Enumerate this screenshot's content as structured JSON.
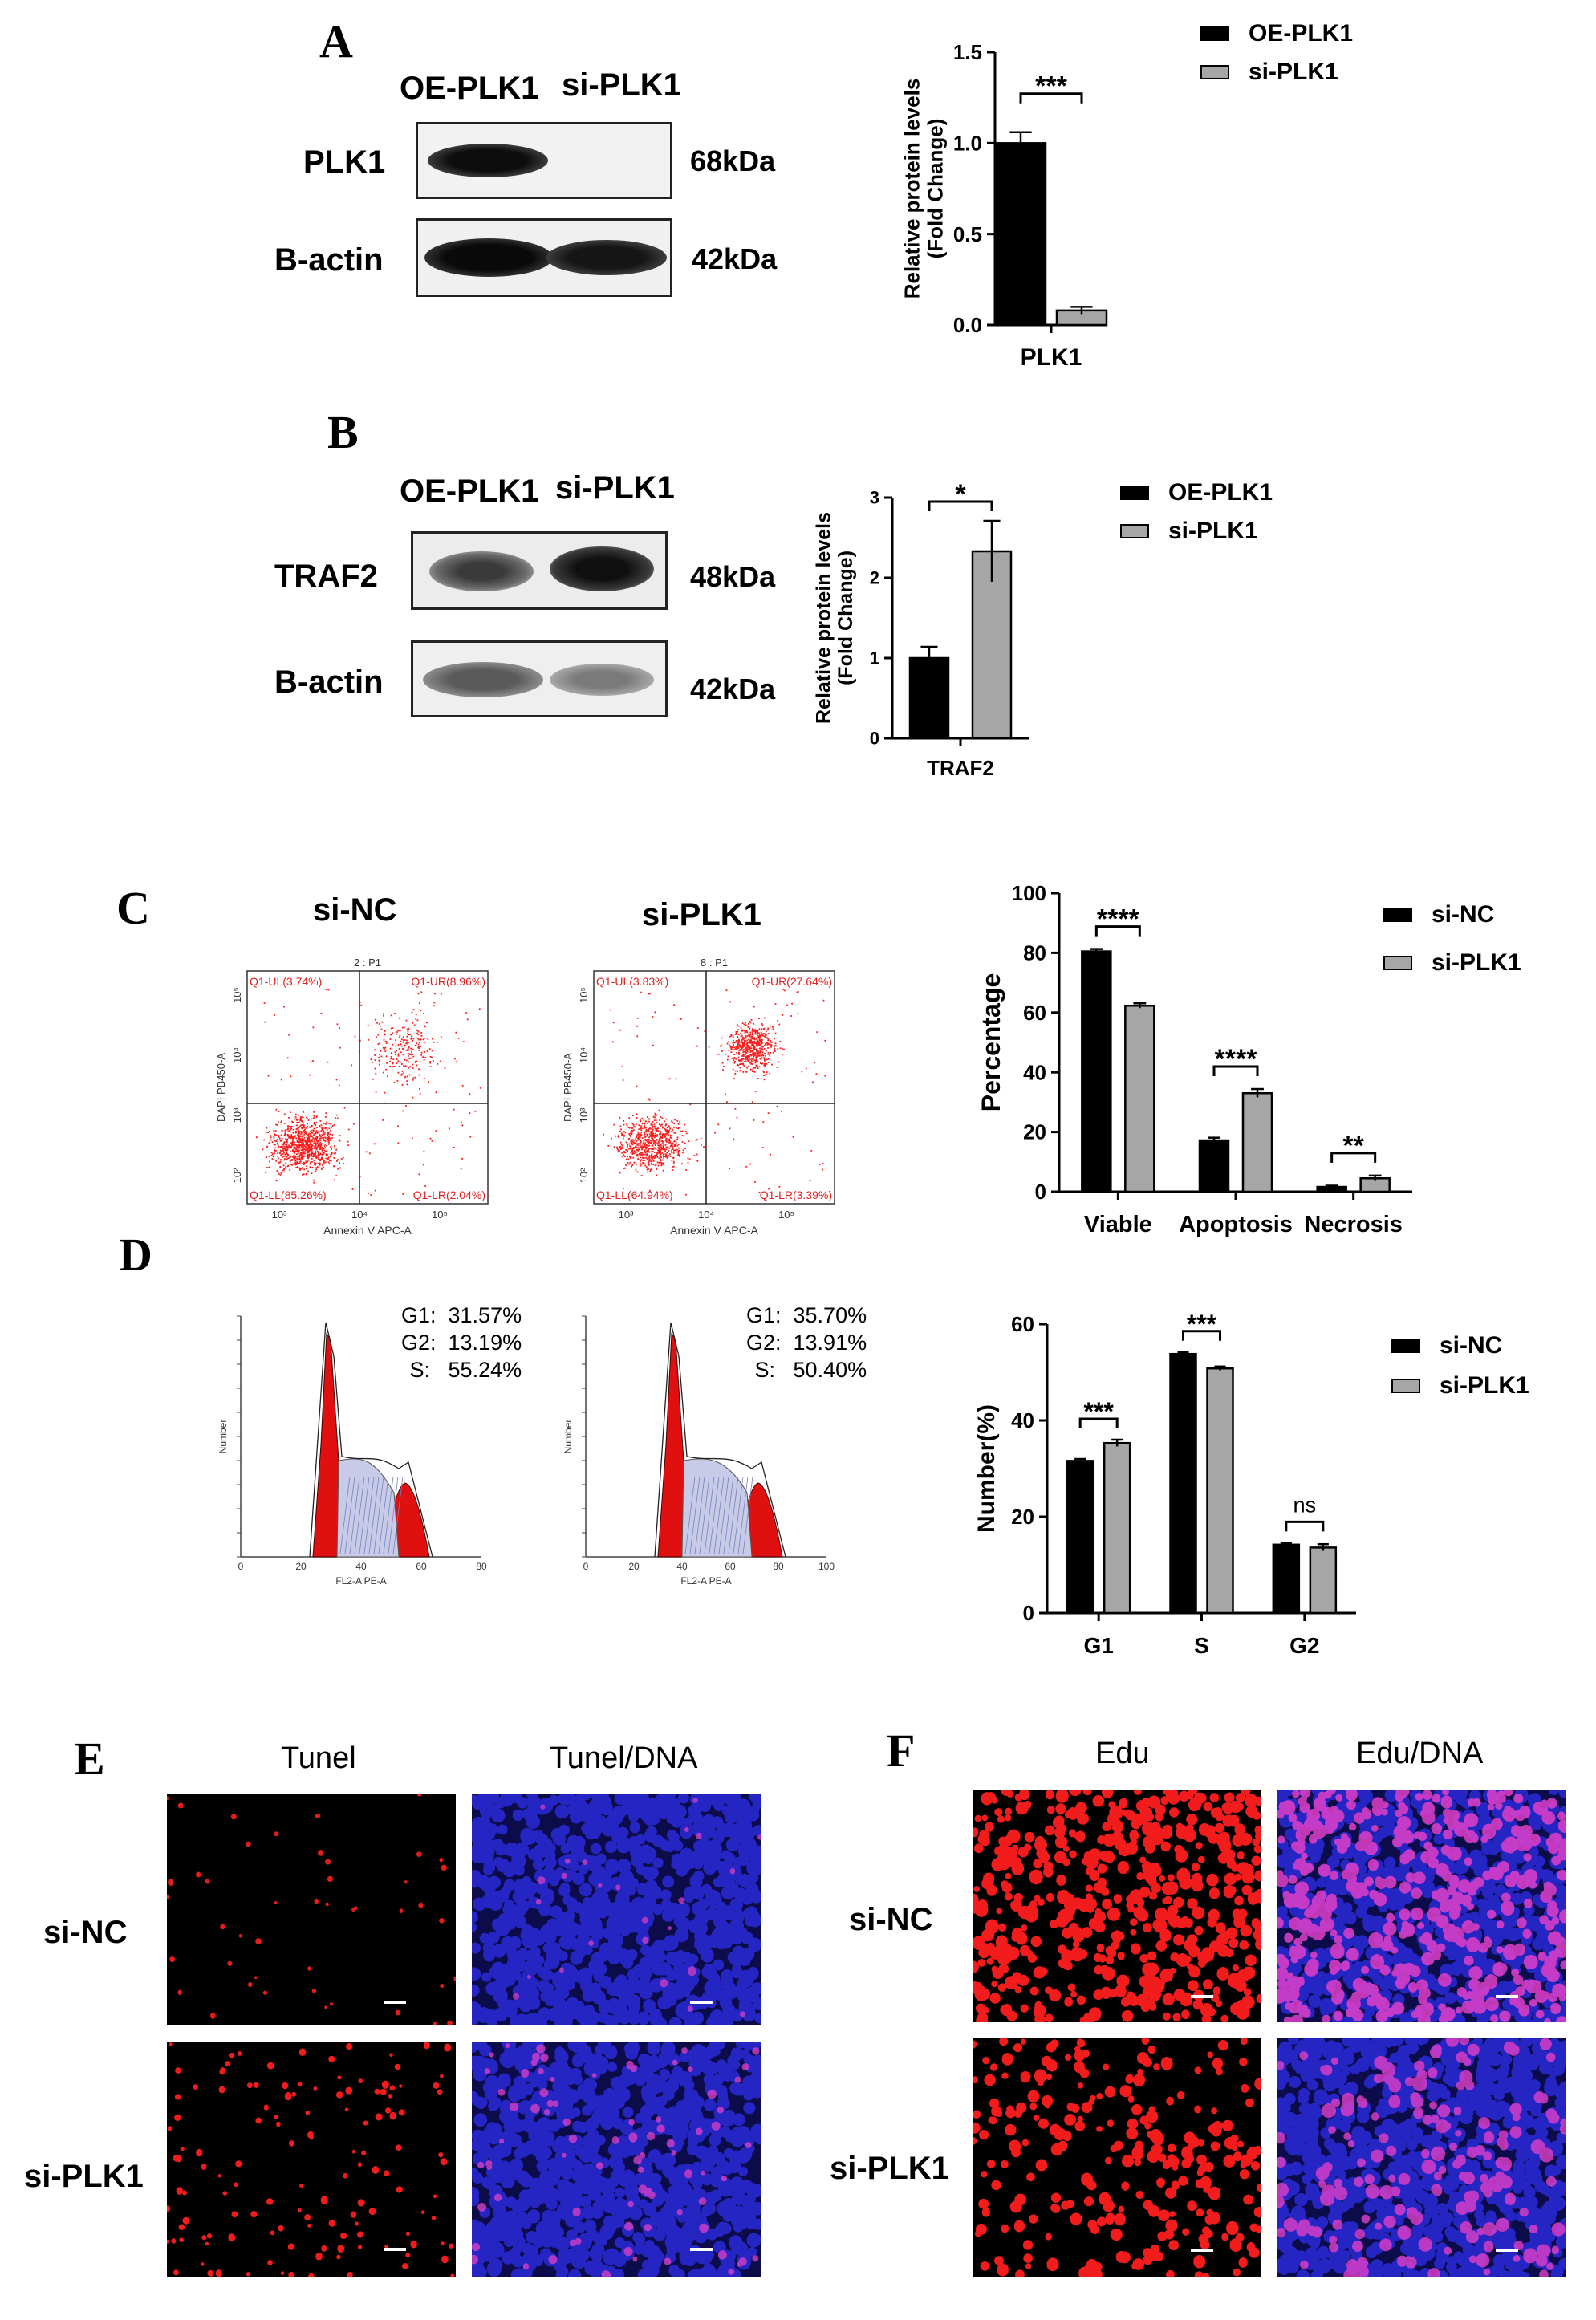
{
  "panels": {
    "A": {
      "label": "A",
      "lanes": [
        "OE-PLK1",
        "si-PLK1"
      ],
      "bands": [
        {
          "name": "PLK1",
          "kda": "68kDa"
        },
        {
          "name": "B-actin",
          "kda": "42kDa"
        }
      ]
    },
    "B": {
      "label": "B",
      "lanes": [
        "OE-PLK1",
        "si-PLK1"
      ],
      "bands": [
        {
          "name": "TRAF2",
          "kda": "48kDa"
        },
        {
          "name": "B-actin",
          "kda": "42kDa"
        }
      ]
    },
    "C": {
      "label": "C",
      "flow_titles": [
        "si-NC",
        "si-PLK1"
      ],
      "flow_plots": [
        {
          "sample": "2 : P1",
          "ul": "Q1-UL(3.74%)",
          "ur": "Q1-UR(8.96%)",
          "ll": "Q1-LL(85.26%)",
          "lr": "Q1-LR(2.04%)",
          "xlabel": "Annexin V APC-A",
          "ylabel": "DAPI PB450-A"
        },
        {
          "sample": "8 : P1",
          "ul": "Q1-UL(3.83%)",
          "ur": "Q1-UR(27.64%)",
          "ll": "Q1-LL(64.94%)",
          "lr": "Q1-LR(3.39%)",
          "xlabel": "Annexin V APC-A",
          "ylabel": "DAPI PB450-A"
        }
      ]
    },
    "D": {
      "label": "D",
      "cc_plots": [
        {
          "stats": "G1:  31.57%\nG2:  13.19%\nS:   55.24%",
          "xlabel": "FL2-A PE-A",
          "ylabel": "Number"
        },
        {
          "stats": "G1:  35.70%\nG2:  13.91%\nS:   50.40%",
          "xlabel": "FL2-A PE-A",
          "ylabel": "Number"
        }
      ]
    },
    "E": {
      "label": "E",
      "columns": [
        "Tunel",
        "Tunel/DNA"
      ],
      "rows": [
        "si-NC",
        "si-PLK1"
      ]
    },
    "F": {
      "label": "F",
      "columns": [
        "Edu",
        "Edu/DNA"
      ],
      "rows": [
        "si-NC",
        "si-PLK1"
      ]
    }
  },
  "colors": {
    "series1": "#000000",
    "series2": "#a6a6a6",
    "flow_dot": "#ff1a1a",
    "flow_text": "#e02020",
    "micro_red": "#ff1e1e",
    "micro_blue": "#2a2ad8",
    "micro_bg": "#000000"
  },
  "chart_data": [
    {
      "id": "A-bar",
      "type": "bar",
      "categories": [
        "PLK1"
      ],
      "series": [
        {
          "name": "OE-PLK1",
          "values": [
            1.0
          ],
          "errors": [
            0.06
          ]
        },
        {
          "name": "si-PLK1",
          "values": [
            0.08
          ],
          "errors": [
            0.02
          ]
        }
      ],
      "ylabel": "Relative protein levels\n(Fold Change)",
      "ylim": [
        0,
        1.5
      ],
      "yticks": [
        "0.0",
        "0.5",
        "1.0",
        "1.5"
      ],
      "significance": [
        {
          "label": "***",
          "category": 0
        }
      ],
      "legend": "top-right"
    },
    {
      "id": "B-bar",
      "type": "bar",
      "categories": [
        "TRAF2"
      ],
      "series": [
        {
          "name": "OE-PLK1",
          "values": [
            1.0
          ],
          "errors": [
            0.14
          ]
        },
        {
          "name": "si-PLK1",
          "values": [
            2.33
          ],
          "errors": [
            0.38
          ]
        }
      ],
      "ylabel": "Relative protein levels\n(Fold Change)",
      "ylim": [
        0,
        3
      ],
      "yticks": [
        "0",
        "1",
        "2",
        "3"
      ],
      "significance": [
        {
          "label": "*",
          "category": 0
        }
      ],
      "legend": "top-right"
    },
    {
      "id": "C-bar",
      "type": "bar",
      "categories": [
        "Viable",
        "Apoptosis",
        "Necrosis"
      ],
      "series": [
        {
          "name": "si-NC",
          "values": [
            80.5,
            17.2,
            1.6
          ],
          "errors": [
            0.8,
            0.9,
            0.4
          ]
        },
        {
          "name": "si-PLK1",
          "values": [
            62.3,
            33.0,
            4.5
          ],
          "errors": [
            0.8,
            1.4,
            0.9
          ]
        }
      ],
      "ylabel": "Percentage",
      "ylim": [
        0,
        100
      ],
      "yticks": [
        "0",
        "20",
        "40",
        "60",
        "80",
        "100"
      ],
      "significance": [
        {
          "label": "****",
          "category": 0
        },
        {
          "label": "****",
          "category": 1
        },
        {
          "label": "**",
          "category": 2
        }
      ],
      "legend": "top-right"
    },
    {
      "id": "D-bar",
      "type": "bar",
      "categories": [
        "G1",
        "S",
        "G2"
      ],
      "series": [
        {
          "name": "si-NC",
          "values": [
            31.6,
            53.8,
            14.2
          ],
          "errors": [
            0.4,
            0.4,
            0.4
          ]
        },
        {
          "name": "si-PLK1",
          "values": [
            35.3,
            50.8,
            13.6
          ],
          "errors": [
            0.7,
            0.4,
            0.7
          ]
        }
      ],
      "ylabel": "Number(%)",
      "ylim": [
        0,
        60
      ],
      "yticks": [
        "0",
        "20",
        "40",
        "60"
      ],
      "significance": [
        {
          "label": "***",
          "category": 0
        },
        {
          "label": "***",
          "category": 1
        },
        {
          "label": "ns",
          "category": 2
        }
      ],
      "legend": "top-right"
    }
  ]
}
